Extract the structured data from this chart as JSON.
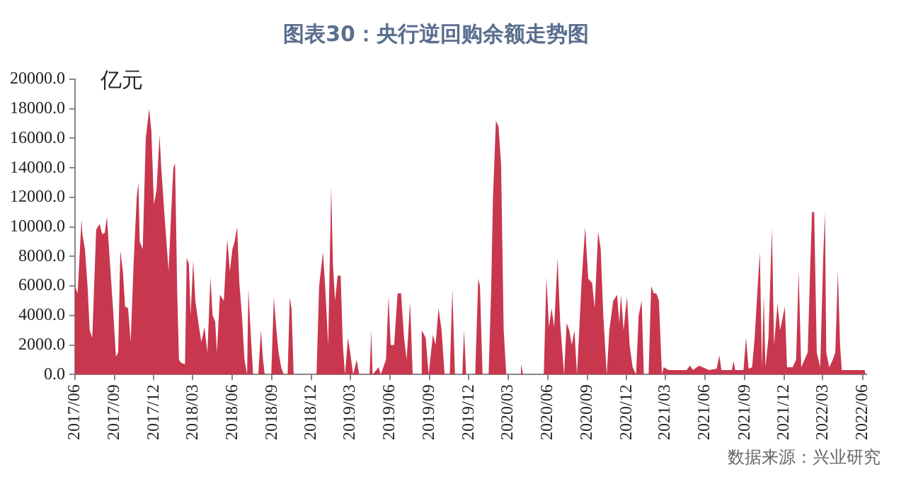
{
  "chart_data": {
    "type": "area",
    "title": "图表30：央行逆回购余额走势图",
    "ylabel": "亿元",
    "annotations": [
      "数据来源：兴业研究"
    ],
    "color": "#c8374e",
    "grid": false,
    "legend": false,
    "xlim": [
      "2017-06-01",
      "2022-06-10"
    ],
    "xticks": [
      {
        "value": "2017-06",
        "label": "2017/06"
      },
      {
        "value": "2017-09",
        "label": "2017/09"
      },
      {
        "value": "2017-12",
        "label": "2017/12"
      },
      {
        "value": "2018-03",
        "label": "2018/03"
      },
      {
        "value": "2018-06",
        "label": "2018/06"
      },
      {
        "value": "2018-09",
        "label": "2018/09"
      },
      {
        "value": "2018-12",
        "label": "2018/12"
      },
      {
        "value": "2019-03",
        "label": "2019/03"
      },
      {
        "value": "2019-06",
        "label": "2019/06"
      },
      {
        "value": "2019-09",
        "label": "2019/09"
      },
      {
        "value": "2019-12",
        "label": "2019/12"
      },
      {
        "value": "2020-03",
        "label": "2020/03"
      },
      {
        "value": "2020-06",
        "label": "2020/06"
      },
      {
        "value": "2020-09",
        "label": "2020/09"
      },
      {
        "value": "2020-12",
        "label": "2020/12"
      },
      {
        "value": "2021-03",
        "label": "2021/03"
      },
      {
        "value": "2021-06",
        "label": "2021/06"
      },
      {
        "value": "2021-09",
        "label": "2021/09"
      },
      {
        "value": "2021-12",
        "label": "2021/12"
      },
      {
        "value": "2022-03",
        "label": "2022/03"
      },
      {
        "value": "2022-06",
        "label": "2022/06"
      }
    ],
    "ylim": [
      0,
      20000
    ],
    "yticks": [
      {
        "value": 0,
        "label": "0.0"
      },
      {
        "value": 2000,
        "label": "2000.0"
      },
      {
        "value": 4000,
        "label": "4000.0"
      },
      {
        "value": 6000,
        "label": "6000.0"
      },
      {
        "value": 8000,
        "label": "8000.0"
      },
      {
        "value": 10000,
        "label": "10000.0"
      },
      {
        "value": 12000,
        "label": "12000.0"
      },
      {
        "value": 14000,
        "label": "14000.0"
      },
      {
        "value": 16000,
        "label": "16000.0"
      },
      {
        "value": 18000,
        "label": "18000.0"
      },
      {
        "value": 20000,
        "label": "20000.0"
      }
    ],
    "x": [
      "2017-06-01",
      "2017-06-07",
      "2017-06-16",
      "2017-06-18",
      "2017-06-24",
      "2017-06-30",
      "2017-07-05",
      "2017-07-11",
      "2017-07-20",
      "2017-07-28",
      "2017-08-03",
      "2017-08-09",
      "2017-08-14",
      "2017-08-20",
      "2017-08-28",
      "2017-09-04",
      "2017-09-09",
      "2017-09-14",
      "2017-09-20",
      "2017-09-25",
      "2017-10-02",
      "2017-10-08",
      "2017-10-15",
      "2017-10-22",
      "2017-10-26",
      "2017-10-29",
      "2017-11-05",
      "2017-11-12",
      "2017-11-20",
      "2017-11-25",
      "2017-12-01",
      "2017-12-07",
      "2017-12-14",
      "2017-12-18",
      "2017-12-25",
      "2017-12-30",
      "2018-01-04",
      "2018-01-10",
      "2018-01-15",
      "2018-01-19",
      "2018-01-24",
      "2018-01-28",
      "2018-02-02",
      "2018-02-11",
      "2018-02-15",
      "2018-02-20",
      "2018-02-24",
      "2018-03-02",
      "2018-03-07",
      "2018-03-14",
      "2018-03-21",
      "2018-03-28",
      "2018-04-04",
      "2018-04-11",
      "2018-04-16",
      "2018-04-22",
      "2018-04-26",
      "2018-05-03",
      "2018-05-12",
      "2018-05-20",
      "2018-05-26",
      "2018-06-01",
      "2018-06-06",
      "2018-06-12",
      "2018-06-17",
      "2018-06-23",
      "2018-06-29",
      "2018-07-05",
      "2018-07-08",
      "2018-07-13",
      "2018-07-19",
      "2018-07-31",
      "2018-08-06",
      "2018-08-11",
      "2018-08-15",
      "2018-08-30",
      "2018-09-05",
      "2018-09-11",
      "2018-09-16",
      "2018-09-22",
      "2018-09-28",
      "2018-10-07",
      "2018-10-12",
      "2018-10-16",
      "2018-10-21",
      "2018-12-13",
      "2018-12-19",
      "2018-12-28",
      "2019-01-02",
      "2019-01-09",
      "2019-01-16",
      "2019-01-20",
      "2019-01-25",
      "2019-01-31",
      "2019-02-07",
      "2019-02-12",
      "2019-02-17",
      "2019-02-24",
      "2019-03-01",
      "2019-03-08",
      "2019-03-16",
      "2019-03-22",
      "2019-04-15",
      "2019-04-19",
      "2019-04-22",
      "2019-05-06",
      "2019-05-11",
      "2019-05-23",
      "2019-05-29",
      "2019-06-03",
      "2019-06-11",
      "2019-06-19",
      "2019-06-27",
      "2019-07-04",
      "2019-07-10",
      "2019-07-18",
      "2019-07-24",
      "2019-08-11",
      "2019-08-14",
      "2019-08-23",
      "2019-08-30",
      "2019-09-09",
      "2019-09-15",
      "2019-09-22",
      "2019-09-29",
      "2019-10-06",
      "2019-10-18",
      "2019-10-24",
      "2019-10-30",
      "2019-11-16",
      "2019-11-20",
      "2019-11-25",
      "2019-12-16",
      "2019-12-23",
      "2019-12-27",
      "2020-01-02",
      "2020-01-16",
      "2020-01-22",
      "2020-01-26",
      "2020-02-02",
      "2020-02-08",
      "2020-02-14",
      "2020-02-20",
      "2020-02-26",
      "2020-03-29",
      "2020-03-31",
      "2020-04-05",
      "2020-05-23",
      "2020-05-29",
      "2020-06-04",
      "2020-06-10",
      "2020-06-16",
      "2020-06-24",
      "2020-06-30",
      "2020-07-09",
      "2020-07-15",
      "2020-07-21",
      "2020-07-27",
      "2020-08-02",
      "2020-08-08",
      "2020-08-14",
      "2020-08-19",
      "2020-08-27",
      "2020-09-03",
      "2020-09-12",
      "2020-09-18",
      "2020-09-26",
      "2020-10-02",
      "2020-10-08",
      "2020-10-16",
      "2020-10-22",
      "2020-10-31",
      "2020-11-09",
      "2020-11-14",
      "2020-11-18",
      "2020-11-24",
      "2020-12-02",
      "2020-12-08",
      "2020-12-15",
      "2020-12-23",
      "2020-12-29",
      "2021-01-05",
      "2021-01-10",
      "2021-01-21",
      "2021-01-27",
      "2021-02-02",
      "2021-02-08",
      "2021-02-14",
      "2021-02-21",
      "2021-02-25",
      "2021-03-09",
      "2021-04-19",
      "2021-04-27",
      "2021-05-04",
      "2021-05-18",
      "2021-06-10",
      "2021-06-28",
      "2021-07-04",
      "2021-07-09",
      "2021-08-02",
      "2021-08-06",
      "2021-08-10",
      "2021-08-29",
      "2021-09-04",
      "2021-09-10",
      "2021-09-18",
      "2021-09-24",
      "2021-10-01",
      "2021-10-06",
      "2021-10-11",
      "2021-10-15",
      "2021-10-19",
      "2021-10-26",
      "2021-11-03",
      "2021-11-08",
      "2021-11-16",
      "2021-11-22",
      "2021-11-29",
      "2021-12-03",
      "2021-12-08",
      "2021-12-21",
      "2021-12-29",
      "2022-01-04",
      "2022-01-10",
      "2022-01-25",
      "2022-01-31",
      "2022-02-04",
      "2022-02-09",
      "2022-02-15",
      "2022-02-23",
      "2022-03-02",
      "2022-03-06",
      "2022-03-09",
      "2022-03-16",
      "2022-03-24",
      "2022-03-30",
      "2022-04-05",
      "2022-04-10",
      "2022-04-14",
      "2022-05-04",
      "2022-05-22",
      "2022-06-06",
      "2022-06-08"
    ],
    "values": [
      6000,
      5500,
      10500,
      9500,
      8500,
      6000,
      3000,
      2500,
      9800,
      10200,
      9500,
      9600,
      10700,
      8000,
      4500,
      1200,
      1500,
      8400,
      7000,
      4600,
      4500,
      2200,
      7600,
      12000,
      13000,
      9000,
      8500,
      16000,
      18000,
      16500,
      11500,
      12500,
      16200,
      14000,
      11000,
      9000,
      7000,
      11000,
      14000,
      14300,
      5500,
      1000,
      800,
      700,
      7900,
      7500,
      4000,
      7700,
      5000,
      3500,
      2200,
      3200,
      1500,
      6600,
      4000,
      3600,
      1500,
      5400,
      5000,
      9200,
      7000,
      8500,
      9000,
      10000,
      6200,
      4000,
      1000,
      0,
      5800,
      3000,
      0,
      0,
      3000,
      1000,
      0,
      0,
      5200,
      3000,
      1500,
      500,
      0,
      0,
      5200,
      4500,
      0,
      0,
      6000,
      8300,
      6000,
      2000,
      12700,
      7500,
      5000,
      6700,
      6700,
      2000,
      0,
      2500,
      1500,
      0,
      1000,
      0,
      0,
      3000,
      0,
      500,
      0,
      1000,
      5300,
      2000,
      2000,
      5500,
      5500,
      2500,
      1000,
      4900,
      0,
      0,
      3000,
      2500,
      0,
      2700,
      2000,
      4500,
      3000,
      0,
      0,
      5800,
      0,
      0,
      3000,
      0,
      0,
      6500,
      6000,
      0,
      0,
      5800,
      11800,
      17200,
      16800,
      14200,
      3000,
      0,
      0,
      700,
      0,
      0,
      6600,
      3200,
      4500,
      3200,
      7900,
      3500,
      0,
      3500,
      3000,
      2000,
      3000,
      0,
      3500,
      6500,
      10000,
      6500,
      6200,
      4500,
      9700,
      8500,
      4000,
      0,
      3000,
      5000,
      5400,
      3500,
      5400,
      3000,
      5300,
      2000,
      500,
      0,
      4000,
      5000,
      0,
      0,
      6000,
      5500,
      5500,
      5000,
      0,
      500,
      300,
      300,
      600,
      300,
      600,
      300,
      400,
      1300,
      300,
      300,
      900,
      300,
      300,
      2500,
      400,
      500,
      2500,
      6000,
      8300,
      500,
      5400,
      500,
      2500,
      9900,
      2000,
      4800,
      3000,
      4000,
      4600,
      500,
      500,
      1000,
      7000,
      500,
      1500,
      7500,
      11000,
      11000,
      1500,
      500,
      8000,
      11000,
      1500,
      500,
      1000,
      1500,
      7000,
      2000,
      300,
      300,
      300,
      300,
      0
    ]
  }
}
